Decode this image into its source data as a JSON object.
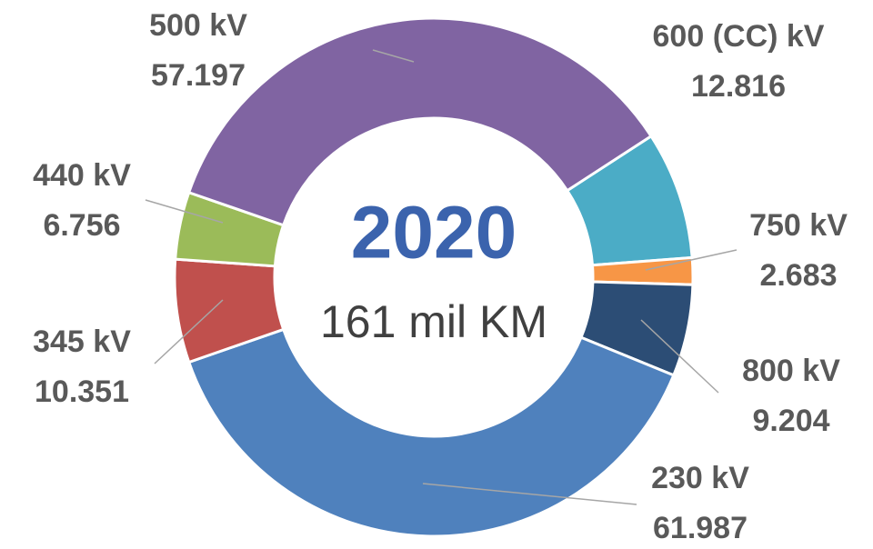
{
  "chart_data": {
    "type": "donut",
    "title": "2020",
    "subtitle": "161 mil KM",
    "categories": [
      "600 (CC) kV",
      "750 kV",
      "800 kV",
      "230 kV",
      "345 kV",
      "440 kV",
      "500 kV"
    ],
    "values": [
      12.816,
      2.683,
      9.204,
      61.987,
      10.351,
      6.756,
      57.197
    ],
    "colors": [
      "#4bacc6",
      "#f79646",
      "#2c4d75",
      "#4f81bd",
      "#c0504d",
      "#9bbb59",
      "#8064a2"
    ]
  }
}
